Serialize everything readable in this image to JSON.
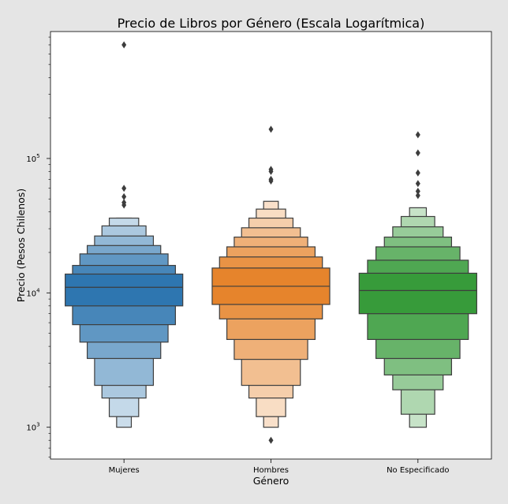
{
  "chart_data": {
    "type": "boxen",
    "title": "Precio de Libros por Género (Escala Logarítmica)",
    "xlabel": "Género",
    "ylabel": "Precio (Pesos Chilenos)",
    "y_scale": "log",
    "ylim": [
      580,
      880000
    ],
    "y_ticks": [
      {
        "value": 1000,
        "base": "10",
        "exp": "3"
      },
      {
        "value": 10000,
        "base": "10",
        "exp": "4"
      },
      {
        "value": 100000,
        "base": "10",
        "exp": "5"
      }
    ],
    "grid": false,
    "categories": [
      "Mujeres",
      "Hombres",
      "No Especificado"
    ],
    "colors": [
      "#2e76b0",
      "#e6842c",
      "#379b3a"
    ],
    "series": [
      {
        "category": "Mujeres",
        "median": 11000,
        "levels": [
          [
            8000,
            13800
          ],
          [
            5800,
            16000
          ],
          [
            4300,
            19500
          ],
          [
            3250,
            22500
          ],
          [
            2050,
            26500
          ],
          [
            1650,
            31500
          ],
          [
            1200,
            36000
          ],
          [
            1000,
            36000
          ]
        ],
        "outliers": [
          700000,
          60000,
          52000,
          47000,
          45000
        ]
      },
      {
        "category": "Hombres",
        "median": 11200,
        "levels": [
          [
            8200,
            15300
          ],
          [
            6400,
            18500
          ],
          [
            4500,
            22000
          ],
          [
            3200,
            26000
          ],
          [
            2050,
            30500
          ],
          [
            1650,
            36000
          ],
          [
            1200,
            42000
          ],
          [
            1000,
            48000
          ]
        ],
        "outliers": [
          165000,
          83000,
          80000,
          70000,
          68000,
          800
        ]
      },
      {
        "category": "No Especificado",
        "median": 10400,
        "levels": [
          [
            7000,
            14000
          ],
          [
            4500,
            17500
          ],
          [
            3250,
            22000
          ],
          [
            2450,
            26000
          ],
          [
            1900,
            31000
          ],
          [
            1250,
            37000
          ],
          [
            1000,
            43000
          ]
        ],
        "outliers": [
          150000,
          110000,
          78000,
          65000,
          57000,
          53000
        ]
      }
    ]
  }
}
